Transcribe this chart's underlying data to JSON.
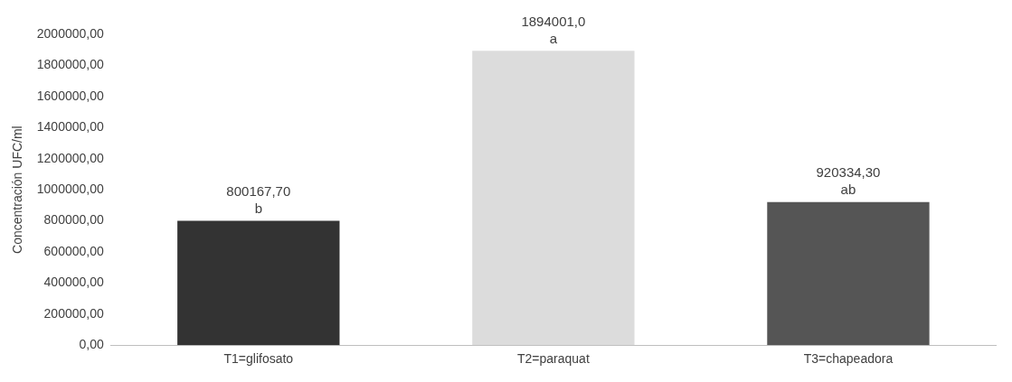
{
  "chart_data": {
    "type": "bar",
    "ylabel": "Concentración UFC/ml",
    "categories": [
      "T1=glifosato",
      "T2=paraquat",
      "T3=chapeadora"
    ],
    "values": [
      800167.7,
      1894001.0,
      920334.3
    ],
    "value_labels": [
      "800167,70",
      "1894001,0",
      "920334,30"
    ],
    "colors": [
      "#333333",
      "#dcdcdc",
      "#555555"
    ],
    "ylim": [
      0,
      2000000
    ],
    "yticks": [
      {
        "value": 0,
        "label": "0,00"
      },
      {
        "value": 200000,
        "label": "200000,00"
      },
      {
        "value": 400000,
        "label": "400000,00"
      },
      {
        "value": 600000,
        "label": "600000,00"
      },
      {
        "value": 800000,
        "label": "800000,00"
      },
      {
        "value": 1000000,
        "label": "1000000,00"
      },
      {
        "value": 1200000,
        "label": "1200000,00"
      },
      {
        "value": 1400000,
        "label": "1400000,00"
      },
      {
        "value": 1600000,
        "label": "1600000,00"
      },
      {
        "value": 1800000,
        "label": "1800000,00"
      },
      {
        "value": 2000000,
        "label": "2000000,00"
      }
    ],
    "annotations": [
      {
        "text": "b",
        "x": "T1=glifosato",
        "y": 800167.7
      },
      {
        "text": "a",
        "x": "T2=paraquat",
        "y": 1894001.0
      },
      {
        "text": "ab",
        "x": "T3=chapeadora",
        "y": 920334.3
      }
    ],
    "grid": false,
    "legend": false
  }
}
